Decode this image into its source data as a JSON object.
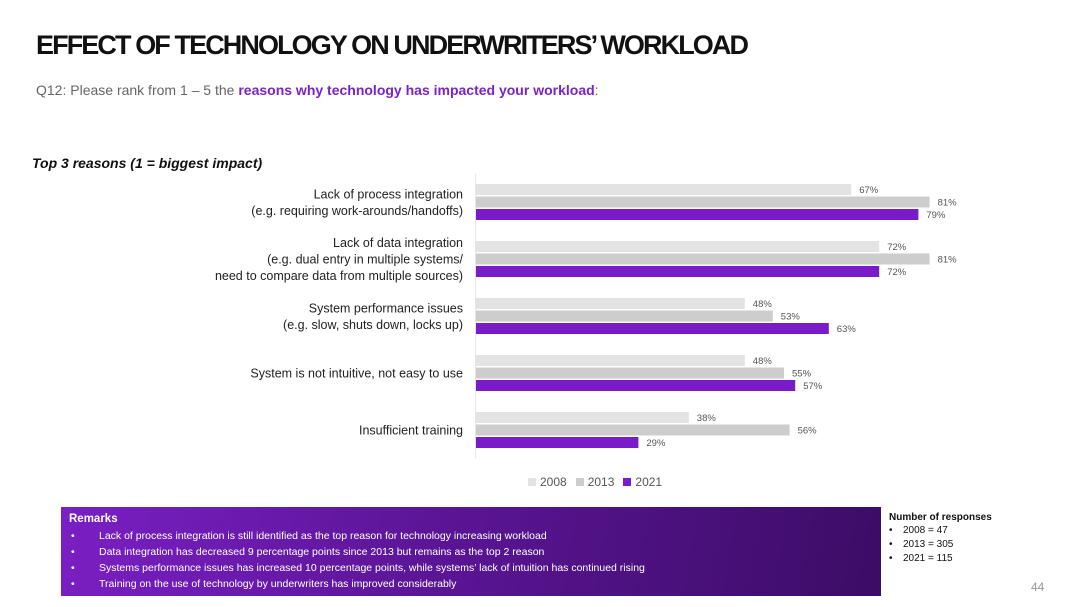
{
  "title": "EFFECT OF TECHNOLOGY ON UNDERWRITERS’ WORKLOAD",
  "question": {
    "prefix": "Q12: Please rank from  1 – 5 the ",
    "highlight": "reasons why technology has impacted your workload",
    "suffix": ":"
  },
  "chart_data": {
    "type": "bar",
    "orientation": "horizontal",
    "title": "Top 3 reasons (1 = biggest impact)",
    "categories": [
      [
        "Lack of process integration",
        "(e.g. requiring work-arounds/handoffs)"
      ],
      [
        "Lack of data integration",
        "(e.g. dual entry in multiple systems/",
        "need to compare data from multiple sources)"
      ],
      [
        "System performance issues",
        "(e.g. slow, shuts down, locks up)"
      ],
      [
        "System is not intuitive, not easy to use"
      ],
      [
        "Insufficient training"
      ]
    ],
    "series": [
      {
        "name": "2008",
        "color": "#e3e3e3",
        "values": [
          67,
          72,
          48,
          48,
          38
        ],
        "labels": [
          "67%",
          "72%",
          "48%",
          "48%",
          "38%"
        ]
      },
      {
        "name": "2013",
        "color": "#cdcdcd",
        "values": [
          81,
          81,
          53,
          55,
          56
        ],
        "labels": [
          "81%",
          "81%",
          "53%",
          "55%",
          "56%"
        ]
      },
      {
        "name": "2021",
        "color": "#7a1bc9",
        "values": [
          79,
          72,
          63,
          57,
          29
        ],
        "labels": [
          "79%",
          "72%",
          "63%",
          "57%",
          "29%"
        ]
      }
    ],
    "xlim": [
      0,
      100
    ],
    "legend_position": "bottom",
    "grid": false
  },
  "remarks": {
    "title": "Remarks",
    "items": [
      "Lack of process integration is still identified as the top reason for technology increasing workload",
      "Data integration has decreased 9 percentage points since 2013 but remains as the top 2 reason",
      "Systems performance issues has increased 10 percentage points, while systems’ lack of intuition has continued rising",
      "Training on the use of technology by underwriters has improved considerably"
    ]
  },
  "responses": {
    "title": "Number of responses",
    "items": [
      "2008 = 47",
      "2013 = 305",
      "2021 = 115"
    ]
  },
  "page_number": "44"
}
